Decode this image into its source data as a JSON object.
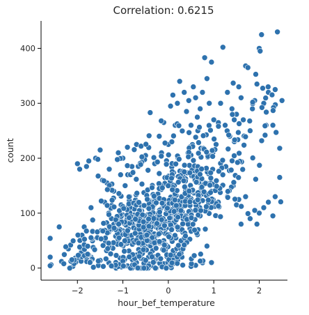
{
  "chart_data": {
    "type": "scatter",
    "title": "Correlation: 0.6215",
    "xlabel": "hour_bef_temperature",
    "ylabel": "count",
    "xlim": [
      -2.8,
      2.62
    ],
    "ylim": [
      -22,
      450
    ],
    "xticks": [
      -2,
      -1,
      0,
      1,
      2
    ],
    "xtick_labels": [
      "−2",
      "−1",
      "0",
      "1",
      "2"
    ],
    "yticks": [
      0,
      100,
      200,
      300,
      400
    ],
    "ytick_labels": [
      "0",
      "100",
      "200",
      "300",
      "400"
    ],
    "grid": false,
    "legend": "none",
    "point_color": "#2e72ae",
    "n_points": 1000,
    "points_note_values_sampled": true,
    "points": [
      [
        -2.6,
        20
      ],
      [
        -2.58,
        6
      ],
      [
        -2.4,
        75
      ],
      [
        -2.35,
        12
      ],
      [
        -2.3,
        8
      ],
      [
        -2.2,
        35
      ],
      [
        -2.15,
        42
      ],
      [
        -2.1,
        3
      ],
      [
        -2.05,
        18
      ],
      [
        -2.0,
        190
      ],
      [
        -1.95,
        180
      ],
      [
        -1.9,
        60
      ],
      [
        -1.85,
        75
      ],
      [
        -1.8,
        185
      ],
      [
        -1.75,
        195
      ],
      [
        -1.7,
        110
      ],
      [
        -1.6,
        200
      ],
      [
        -1.55,
        198
      ],
      [
        -1.5,
        215
      ],
      [
        -1.45,
        160
      ],
      [
        -1.4,
        120
      ],
      [
        -1.35,
        155
      ],
      [
        -1.3,
        180
      ],
      [
        -1.25,
        90
      ],
      [
        -1.2,
        140
      ],
      [
        -1.1,
        210
      ],
      [
        -1.05,
        170
      ],
      [
        -1.0,
        200
      ],
      [
        -0.95,
        150
      ],
      [
        -0.9,
        220
      ],
      [
        -0.85,
        130
      ],
      [
        -0.8,
        185
      ],
      [
        -0.7,
        225
      ],
      [
        -0.6,
        222
      ],
      [
        -0.5,
        205
      ],
      [
        -0.4,
        283
      ],
      [
        -0.3,
        190
      ],
      [
        -0.2,
        240
      ],
      [
        -0.15,
        210
      ],
      [
        -0.1,
        265
      ],
      [
        0.0,
        225
      ],
      [
        0.05,
        295
      ],
      [
        0.1,
        315
      ],
      [
        0.15,
        260
      ],
      [
        0.2,
        300
      ],
      [
        0.25,
        340
      ],
      [
        0.3,
        250
      ],
      [
        0.35,
        320
      ],
      [
        0.4,
        285
      ],
      [
        0.45,
        305
      ],
      [
        0.5,
        260
      ],
      [
        0.55,
        330
      ],
      [
        0.6,
        310
      ],
      [
        0.65,
        250
      ],
      [
        0.7,
        290
      ],
      [
        0.75,
        320
      ],
      [
        0.8,
        383
      ],
      [
        0.85,
        345
      ],
      [
        0.9,
        300
      ],
      [
        0.95,
        375
      ],
      [
        1.0,
        270
      ],
      [
        1.05,
        225
      ],
      [
        1.1,
        260
      ],
      [
        1.15,
        300
      ],
      [
        1.2,
        402
      ],
      [
        1.25,
        260
      ],
      [
        1.3,
        320
      ],
      [
        1.35,
        240
      ],
      [
        1.4,
        290
      ],
      [
        1.45,
        270
      ],
      [
        1.5,
        280
      ],
      [
        1.55,
        330
      ],
      [
        1.6,
        310
      ],
      [
        1.65,
        270
      ],
      [
        1.7,
        368
      ],
      [
        1.75,
        365
      ],
      [
        1.8,
        250
      ],
      [
        1.85,
        290
      ],
      [
        1.9,
        305
      ],
      [
        1.95,
        335
      ],
      [
        2.0,
        400
      ],
      [
        2.02,
        395
      ],
      [
        2.05,
        425
      ],
      [
        2.1,
        300
      ],
      [
        2.15,
        260
      ],
      [
        2.2,
        320
      ],
      [
        2.3,
        260
      ],
      [
        2.35,
        325
      ],
      [
        2.4,
        430
      ],
      [
        2.45,
        218
      ],
      [
        2.5,
        305
      ],
      [
        2.45,
        165
      ],
      [
        2.35,
        130
      ],
      [
        2.2,
        120
      ],
      [
        2.0,
        100
      ],
      [
        1.9,
        105
      ],
      [
        1.8,
        90
      ],
      [
        1.7,
        130
      ],
      [
        1.5,
        115
      ],
      [
        1.3,
        130
      ],
      [
        1.1,
        120
      ],
      [
        0.9,
        110
      ],
      [
        0.7,
        95
      ],
      [
        0.85,
        40
      ],
      [
        0.95,
        10
      ],
      [
        0.6,
        5
      ],
      [
        0.5,
        3
      ],
      [
        0.3,
        20
      ],
      [
        0.1,
        15
      ],
      [
        -0.1,
        8
      ],
      [
        -0.3,
        12
      ],
      [
        -0.5,
        5
      ],
      [
        -0.7,
        10
      ],
      [
        -0.9,
        4
      ],
      [
        -1.1,
        6
      ],
      [
        -1.3,
        10
      ],
      [
        -1.5,
        14
      ],
      [
        -1.7,
        20
      ],
      [
        -1.9,
        28
      ],
      [
        2.3,
        95
      ],
      [
        2.1,
        110
      ],
      [
        1.95,
        80
      ],
      [
        1.6,
        80
      ]
    ]
  }
}
